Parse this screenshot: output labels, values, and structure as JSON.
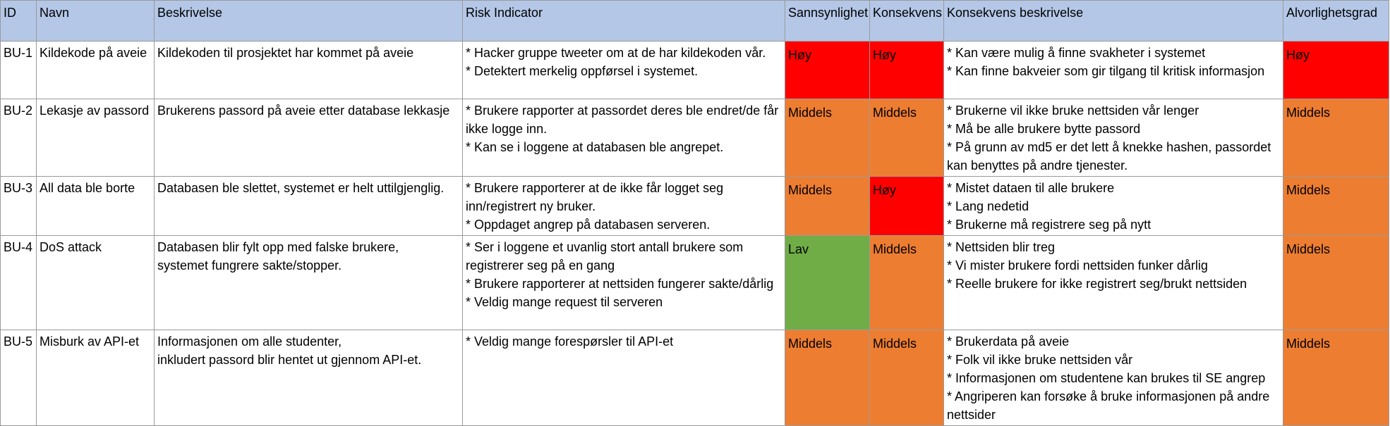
{
  "colors": {
    "header_bg": "#b4c7e7",
    "high": "#ff0000",
    "medium": "#ed7d31",
    "low": "#70ad47",
    "grid": "#9a9a9a"
  },
  "headers": {
    "id": "ID",
    "name": "Navn",
    "description": "Beskrivelse",
    "risk_indicator": "Risk Indicator",
    "probability": "Sannsynlighet",
    "consequence": "Konsekvens",
    "consequence_desc": "Konsekvens beskrivelse",
    "severity": "Alvorlighetsgrad"
  },
  "rows": [
    {
      "id": "BU-1",
      "name": "Kildekode på aveie",
      "description": [
        "Kildekoden til prosjektet har kommet på aveie"
      ],
      "indicators": [
        "* Hacker gruppe tweeter om at de har kildekoden vår.",
        "* Detektert merkelig oppførsel i systemet."
      ],
      "probability": "Høy",
      "consequence": "Høy",
      "consequence_desc": [
        "* Kan være mulig å finne svakheter i systemet",
        "* Kan finne bakveier som gir tilgang til kritisk informasjon"
      ],
      "severity": "Høy"
    },
    {
      "id": "BU-2",
      "name": "Lekasje av passord",
      "description": [
        "Brukerens passord på aveie etter database lekkasje"
      ],
      "indicators": [
        "* Brukere rapporter at passordet deres ble endret/de får ikke logge inn.",
        "* Kan se i loggene at databasen ble angrepet."
      ],
      "probability": "Middels",
      "consequence": "Middels",
      "consequence_desc": [
        "* Brukerne vil ikke bruke nettsiden vår lenger",
        "* Må be alle brukere bytte passord",
        "* På grunn av md5 er det lett å knekke hashen, passordet kan benyttes på andre tjenester."
      ],
      "severity": "Middels"
    },
    {
      "id": "BU-3",
      "name": "All data ble borte",
      "description": [
        "Databasen ble slettet, systemet er helt uttilgjenglig."
      ],
      "indicators": [
        "* Brukere rapporterer at de ikke får logget seg inn/registrert ny bruker.",
        "* Oppdaget angrep på databasen serveren."
      ],
      "probability": "Middels",
      "consequence": "Høy",
      "consequence_desc": [
        "* Mistet dataen til alle brukere",
        "* Lang nedetid",
        "* Brukerne må registrere seg på nytt"
      ],
      "severity": "Middels"
    },
    {
      "id": "BU-4",
      "name": "DoS attack",
      "description": [
        "Databasen blir fylt opp med falske brukere,",
        "systemet fungrere sakte/stopper."
      ],
      "indicators": [
        "* Ser i loggene et uvanlig stort antall brukere som registrerer seg på en gang",
        "* Brukere rapporterer at nettsiden fungerer sakte/dårlig",
        "* Veldig mange request til serveren"
      ],
      "probability": "Lav",
      "consequence": "Middels",
      "consequence_desc": [
        "* Nettsiden blir treg",
        "* Vi mister brukere fordi nettsiden funker dårlig",
        "* Reelle brukere for ikke registrert seg/brukt nettsiden"
      ],
      "severity": "Middels"
    },
    {
      "id": "BU-5",
      "name": "Misburk av API-et",
      "description": [
        "Informasjonen om alle studenter,",
        "inkludert passord blir hentet ut gjennom API-et."
      ],
      "indicators": [
        "* Veldig mange forespørsler til API-et"
      ],
      "probability": "Middels",
      "consequence": "Middels",
      "consequence_desc": [
        "* Brukerdata på aveie",
        "* Folk vil ikke bruke nettsiden vår",
        "* Informasjonen om studentene kan brukes til SE angrep",
        "* Angriperen kan forsøke å bruke informasjonen på andre nettsider"
      ],
      "severity": "Middels"
    }
  ]
}
